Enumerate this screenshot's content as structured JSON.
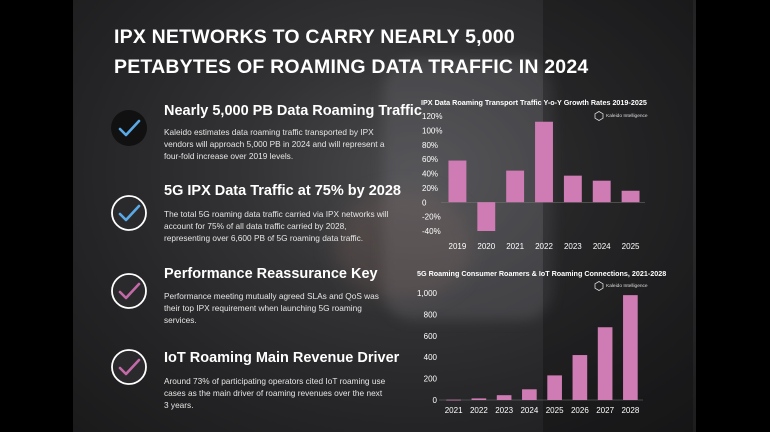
{
  "title": "IPX NETWORKS TO CARRY NEARLY 5,000 PETABYTES OF ROAMING DATA TRAFFIC IN 2024",
  "items": [
    {
      "heading": "Nearly 5,000 PB Data Roaming Traffic",
      "body": "Kaleido estimates data roaming traffic transported by IPX vendors will approach 5,000 PB in 2024 and will represent a four-fold increase over 2019 levels.",
      "icon_color": "#5aa9e6"
    },
    {
      "heading": "5G IPX Data Traffic at 75% by 2028",
      "body": "The total 5G roaming data traffic carried via IPX networks will account for 75% of all data traffic carried by 2028, representing over 6,600 PB of 5G roaming data traffic.",
      "icon_color": "#5aa9e6"
    },
    {
      "heading": "Performance Reassurance Key",
      "body": "Performance meeting mutually agreed SLAs and QoS was their top IPX requirement when launching 5G roaming services.",
      "icon_color": "#c26aa7"
    },
    {
      "heading": "IoT Roaming Main Revenue Driver",
      "body": "Around 73% of participating operators cited IoT roaming use cases as the main driver of roaming revenues over the next 3 years.",
      "icon_color": "#c26aa7"
    }
  ],
  "logo_text": "Kaleido Intelligence",
  "colors": {
    "bar": "#d07cb4",
    "text": "#ffffff",
    "background": "#2b2b2d"
  },
  "chart_data": [
    {
      "type": "bar",
      "title": "IPX Data Roaming Transport Traffic Y-o-Y Growth Rates 2019-2025",
      "categories": [
        "2019",
        "2020",
        "2021",
        "2022",
        "2023",
        "2024",
        "2025"
      ],
      "values": [
        58,
        -40,
        44,
        112,
        37,
        30,
        16
      ],
      "ylim": [
        -40,
        120
      ],
      "yticks": [
        120,
        100,
        80,
        60,
        40,
        20,
        0,
        -20,
        -40
      ],
      "ytick_labels": [
        "120%",
        "100%",
        "80%",
        "60%",
        "40%",
        "20%",
        "0",
        "-20%",
        "-40%"
      ],
      "grid": false
    },
    {
      "type": "bar",
      "title": "5G Roaming Consumer Roamers & IoT Roaming Connections, 2021-2028",
      "categories": [
        "2021",
        "2022",
        "2023",
        "2024",
        "2025",
        "2026",
        "2027",
        "2028"
      ],
      "values": [
        3,
        15,
        45,
        100,
        230,
        420,
        680,
        980
      ],
      "ylim": [
        0,
        1000
      ],
      "yticks": [
        1000,
        800,
        600,
        400,
        200,
        0
      ],
      "ytick_labels": [
        "1,000",
        "800",
        "600",
        "400",
        "200",
        "0"
      ],
      "grid": false
    }
  ]
}
